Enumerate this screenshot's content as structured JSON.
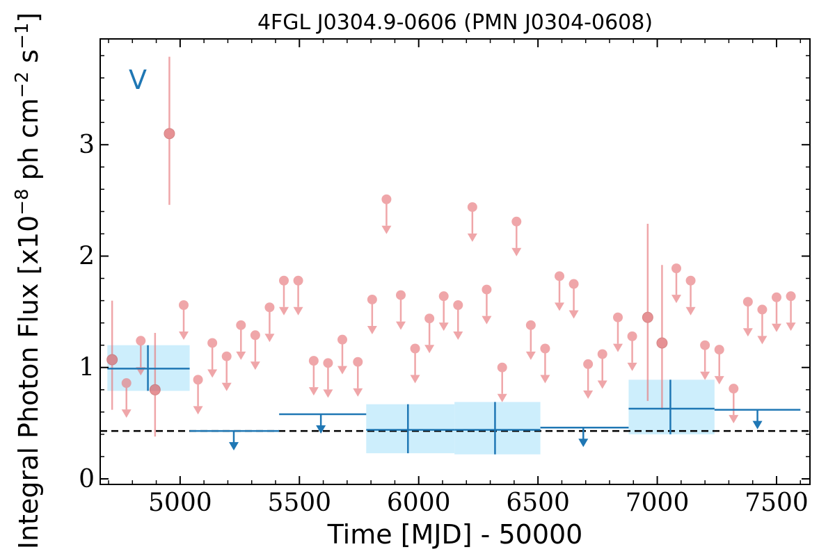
{
  "chart_data": {
    "type": "scatter",
    "title": "4FGL J0304.9-0606 (PMN J0304-0608)",
    "xlabel": "Time [MJD] - 50000",
    "ylabel_main": "Integral Photon Flux [x10",
    "ylabel_exp1": "−8",
    "ylabel_mid": " ph cm",
    "ylabel_exp2": "−2",
    "ylabel_s": " s",
    "ylabel_exp3": "−1",
    "ylabel_end": "]",
    "band_label": "V",
    "xlim": [
      4665,
      7640
    ],
    "ylim": [
      -0.05,
      3.95
    ],
    "xticks": [
      5000,
      5500,
      6000,
      6500,
      7000,
      7500
    ],
    "xtick_labels": [
      "5000",
      "5500",
      "6000",
      "6500",
      "7000",
      "7500"
    ],
    "yticks": [
      0,
      1,
      2,
      3
    ],
    "ytick_labels": [
      "0",
      "1",
      "2",
      "3"
    ],
    "reference_level": 0.43,
    "colors": {
      "fine_bins": "#e8787c",
      "coarse_bins": "#1f77b4",
      "coarse_error_box": "#cdeefc",
      "reference_line": "#000000"
    },
    "series": [
      {
        "name": "",
        "bin_width": 60,
        "detections": [
          {
            "x": 4715,
            "y": 1.07,
            "ylo": 0.62,
            "yhi": 1.6
          },
          {
            "x": 4895,
            "y": 0.8,
            "ylo": 0.38,
            "yhi": 1.31
          },
          {
            "x": 4955,
            "y": 3.1,
            "ylo": 2.46,
            "yhi": 3.79
          },
          {
            "x": 6960,
            "y": 1.45,
            "ylo": 0.7,
            "yhi": 2.29
          },
          {
            "x": 7020,
            "y": 1.22,
            "ylo": 0.62,
            "yhi": 1.92
          }
        ],
        "upper_limits": [
          {
            "x": 4775,
            "y": 0.86
          },
          {
            "x": 4835,
            "y": 1.24
          },
          {
            "x": 5015,
            "y": 1.56
          },
          {
            "x": 5075,
            "y": 0.89
          },
          {
            "x": 5135,
            "y": 1.22
          },
          {
            "x": 5195,
            "y": 1.1
          },
          {
            "x": 5255,
            "y": 1.38
          },
          {
            "x": 5315,
            "y": 1.29
          },
          {
            "x": 5375,
            "y": 1.54
          },
          {
            "x": 5435,
            "y": 1.78
          },
          {
            "x": 5495,
            "y": 1.78
          },
          {
            "x": 5560,
            "y": 1.06
          },
          {
            "x": 5620,
            "y": 1.04
          },
          {
            "x": 5680,
            "y": 1.25
          },
          {
            "x": 5745,
            "y": 1.05
          },
          {
            "x": 5805,
            "y": 1.61
          },
          {
            "x": 5865,
            "y": 2.51
          },
          {
            "x": 5925,
            "y": 1.65
          },
          {
            "x": 5985,
            "y": 1.17
          },
          {
            "x": 6045,
            "y": 1.44
          },
          {
            "x": 6105,
            "y": 1.64
          },
          {
            "x": 6165,
            "y": 1.56
          },
          {
            "x": 6225,
            "y": 2.44
          },
          {
            "x": 6285,
            "y": 1.7
          },
          {
            "x": 6350,
            "y": 1.0
          },
          {
            "x": 6410,
            "y": 2.31
          },
          {
            "x": 6470,
            "y": 1.38
          },
          {
            "x": 6530,
            "y": 1.17
          },
          {
            "x": 6590,
            "y": 1.82
          },
          {
            "x": 6650,
            "y": 1.75
          },
          {
            "x": 6710,
            "y": 1.03
          },
          {
            "x": 6770,
            "y": 1.12
          },
          {
            "x": 6835,
            "y": 1.45
          },
          {
            "x": 6895,
            "y": 1.28
          },
          {
            "x": 7080,
            "y": 1.89
          },
          {
            "x": 7140,
            "y": 1.78
          },
          {
            "x": 7200,
            "y": 1.2
          },
          {
            "x": 7260,
            "y": 1.16
          },
          {
            "x": 7320,
            "y": 0.81
          },
          {
            "x": 7380,
            "y": 1.59
          },
          {
            "x": 7440,
            "y": 1.52
          },
          {
            "x": 7500,
            "y": 1.63
          },
          {
            "x": 7560,
            "y": 1.64
          }
        ]
      },
      {
        "name": "",
        "detections": [
          {
            "x": 4865,
            "xmin": 4695,
            "xmax": 5040,
            "y": 0.99,
            "ylo": 0.79,
            "yhi": 1.2
          },
          {
            "x": 5955,
            "xmin": 5780,
            "xmax": 6150,
            "y": 0.44,
            "ylo": 0.23,
            "yhi": 0.67
          },
          {
            "x": 6320,
            "xmin": 6150,
            "xmax": 6510,
            "y": 0.44,
            "ylo": 0.22,
            "yhi": 0.69
          },
          {
            "x": 7055,
            "xmin": 6880,
            "xmax": 7240,
            "y": 0.63,
            "ylo": 0.4,
            "yhi": 0.89
          }
        ],
        "upper_limits": [
          {
            "x": 5225,
            "xmin": 5040,
            "xmax": 5415,
            "y": 0.43
          },
          {
            "x": 5590,
            "xmin": 5415,
            "xmax": 5780,
            "y": 0.58
          },
          {
            "x": 6690,
            "xmin": 6510,
            "xmax": 6880,
            "y": 0.46
          },
          {
            "x": 7420,
            "xmin": 7240,
            "xmax": 7600,
            "y": 0.62
          }
        ]
      }
    ]
  }
}
